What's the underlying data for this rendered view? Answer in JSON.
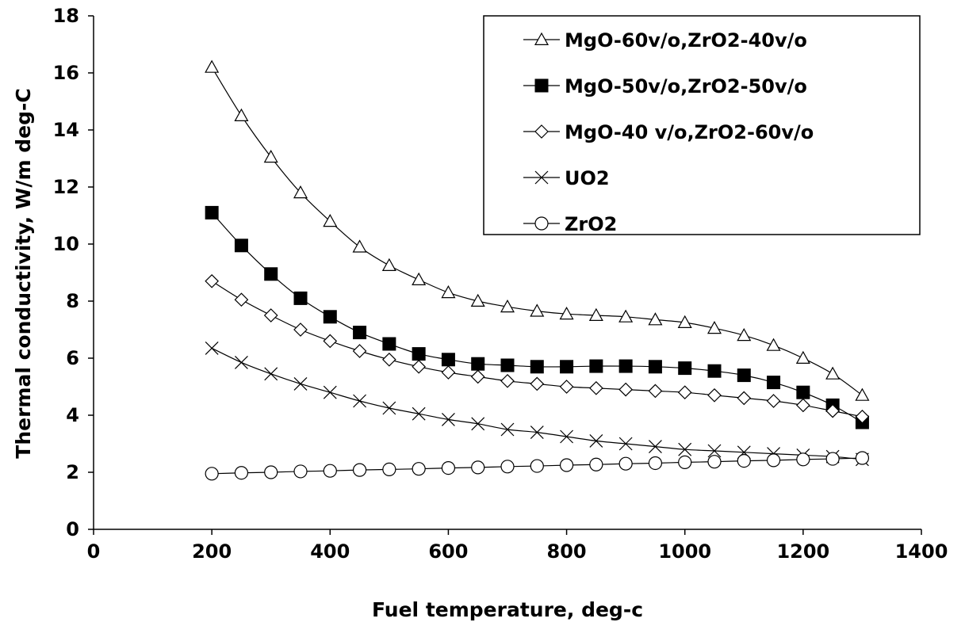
{
  "chart_data": {
    "type": "line",
    "title": "",
    "xlabel": "Fuel temperature, deg-c",
    "ylabel": "Thermal conductivity, W/m deg-C",
    "xlim": [
      0,
      1400
    ],
    "ylim": [
      0,
      18
    ],
    "x_ticks": [
      "0",
      "200",
      "400",
      "600",
      "800",
      "1000",
      "1200",
      "1400"
    ],
    "y_ticks": [
      "0",
      "2",
      "4",
      "6",
      "8",
      "10",
      "12",
      "14",
      "16",
      "18"
    ],
    "grid": false,
    "legend_position": "top-right",
    "x": [
      200,
      250,
      300,
      350,
      400,
      450,
      500,
      550,
      600,
      650,
      700,
      750,
      800,
      850,
      900,
      950,
      1000,
      1050,
      1100,
      1150,
      1200,
      1250,
      1300
    ],
    "series": [
      {
        "name": "MgO-60v/o,ZrO2-40v/o",
        "marker": "open-triangle",
        "values": [
          16.2,
          14.5,
          13.05,
          11.8,
          10.8,
          9.9,
          9.25,
          8.75,
          8.3,
          8.0,
          7.8,
          7.65,
          7.55,
          7.5,
          7.45,
          7.35,
          7.25,
          7.05,
          6.8,
          6.45,
          6.0,
          5.45,
          4.7
        ]
      },
      {
        "name": "MgO-50v/o,ZrO2-50v/o",
        "marker": "filled-square",
        "values": [
          11.1,
          9.95,
          8.95,
          8.1,
          7.45,
          6.9,
          6.5,
          6.15,
          5.95,
          5.8,
          5.75,
          5.7,
          5.7,
          5.72,
          5.72,
          5.7,
          5.65,
          5.55,
          5.4,
          5.15,
          4.8,
          4.35,
          3.75
        ]
      },
      {
        "name": "MgO-40 v/o,ZrO2-60v/o",
        "marker": "open-diamond",
        "values": [
          8.7,
          8.05,
          7.5,
          7.0,
          6.6,
          6.25,
          5.95,
          5.7,
          5.5,
          5.35,
          5.2,
          5.1,
          5.0,
          4.95,
          4.9,
          4.85,
          4.8,
          4.7,
          4.6,
          4.5,
          4.35,
          4.15,
          3.95
        ]
      },
      {
        "name": "UO2",
        "marker": "cross",
        "values": [
          6.35,
          5.85,
          5.45,
          5.1,
          4.8,
          4.5,
          4.25,
          4.05,
          3.85,
          3.7,
          3.5,
          3.4,
          3.25,
          3.1,
          3.0,
          2.9,
          2.8,
          2.75,
          2.7,
          2.65,
          2.6,
          2.55,
          2.45
        ]
      },
      {
        "name": "ZrO2",
        "marker": "open-circle",
        "values": [
          1.95,
          1.98,
          2.0,
          2.03,
          2.05,
          2.08,
          2.1,
          2.12,
          2.15,
          2.17,
          2.2,
          2.22,
          2.25,
          2.27,
          2.3,
          2.32,
          2.35,
          2.37,
          2.4,
          2.42,
          2.45,
          2.47,
          2.5
        ]
      }
    ]
  }
}
